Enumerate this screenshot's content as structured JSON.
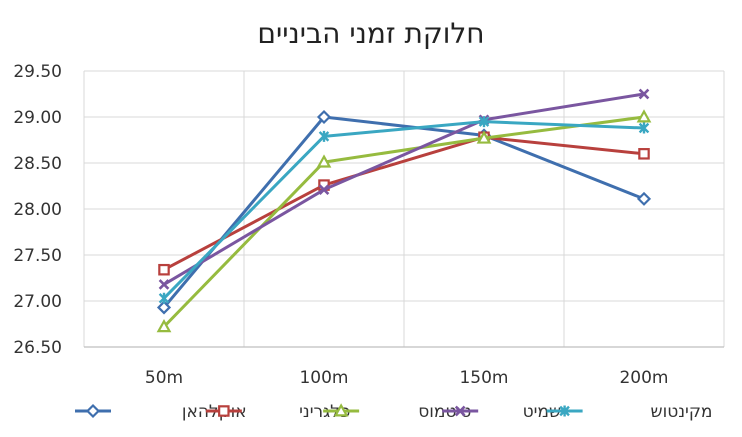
{
  "chart_data": {
    "type": "line",
    "title": "חלוקת זמני הביניים",
    "categories": [
      "50m",
      "100m",
      "150m",
      "200m"
    ],
    "ylim": [
      26.5,
      29.5
    ],
    "yticks": [
      "26.50",
      "27.00",
      "27.50",
      "28.00",
      "28.50",
      "29.00",
      "29.50"
    ],
    "grid": true,
    "legend_position": "bottom",
    "series": [
      {
        "name": "אוקלהאן",
        "color": "#3f6fae",
        "marker": "diamond",
        "values": [
          26.93,
          29.0,
          28.8,
          28.11
        ]
      },
      {
        "name": "פלגריני",
        "color": "#b8403d",
        "marker": "square",
        "values": [
          27.34,
          28.26,
          28.78,
          28.6
        ]
      },
      {
        "name": "טיטמוס",
        "color": "#96bb3f",
        "marker": "triangle",
        "values": [
          26.72,
          28.51,
          28.77,
          29.0
        ]
      },
      {
        "name": "שמיט",
        "color": "#7a56a0",
        "marker": "x",
        "values": [
          27.18,
          28.21,
          28.97,
          29.25
        ]
      },
      {
        "name": "מקינטוש",
        "color": "#3aa7c2",
        "marker": "star",
        "values": [
          27.03,
          28.79,
          28.95,
          28.88
        ]
      }
    ]
  }
}
